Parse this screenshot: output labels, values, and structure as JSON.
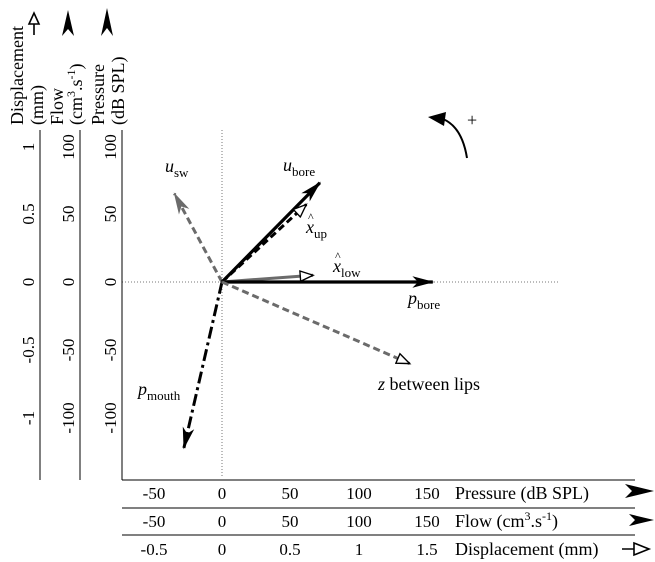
{
  "chart_data": {
    "type": "vector-diagram",
    "axes": {
      "horizontal": [
        {
          "name": "Pressure",
          "label": "Pressure (dB SPL)",
          "ticks": [
            "-50",
            "0",
            "50",
            "100",
            "150"
          ],
          "range": [
            -75,
            250
          ]
        },
        {
          "name": "Flow",
          "label": "Flow (cm",
          "label_sup": "3",
          "label_tail": ".s",
          "label_sup2": "-1",
          "label_close": ")",
          "ticks": [
            "-50",
            "0",
            "50",
            "100",
            "150"
          ],
          "range": [
            -75,
            250
          ]
        },
        {
          "name": "Displacement",
          "label": "Displacement (mm)",
          "ticks": [
            "-0.5",
            "0",
            "0.5",
            "1",
            "1.5"
          ],
          "range": [
            -0.75,
            2.5
          ]
        }
      ],
      "vertical": [
        {
          "name": "Displacement",
          "label_line1": "Displacement",
          "label_line2": "(mm)",
          "ticks": [
            "1",
            "0.5",
            "0",
            "-0.5",
            "-1"
          ]
        },
        {
          "name": "Flow",
          "label_line1": "Flow",
          "label_line2": "(cm",
          "label_sup": "3",
          "label_tail": ".s",
          "label_sup2": "-1",
          "label_close": ")",
          "ticks": [
            "100",
            "50",
            "0",
            "-50",
            "-100"
          ]
        },
        {
          "name": "Pressure",
          "label_line1": "Pressure",
          "label_line2": "(dB SPL)",
          "ticks": [
            "100",
            "50",
            "0",
            "-50",
            "-100"
          ]
        }
      ]
    },
    "rotation_label": "+",
    "vectors": [
      {
        "name": "p_mouth",
        "label_main": "p",
        "label_sub": "mouth",
        "x": -28,
        "y": -122,
        "style": "dash-dot",
        "color": "#000000",
        "arrow": "filled",
        "scale": "Pressure"
      },
      {
        "name": "u_sw",
        "label_main": "u",
        "label_sub": "sw",
        "x": -35,
        "y": 65,
        "style": "dashed",
        "color": "#6b6b6b",
        "arrow": "filled",
        "scale": "Flow"
      },
      {
        "name": "u_bore",
        "label_main": "u",
        "label_sub": "bore",
        "x": 72,
        "y": 73,
        "style": "solid",
        "color": "#000000",
        "arrow": "filled",
        "scale": "Flow"
      },
      {
        "name": "x_up",
        "label_main": "x",
        "label_hat": "^",
        "label_sub": "up",
        "x": 0.62,
        "y": 0.57,
        "style": "dashed",
        "color": "#000000",
        "arrow": "open",
        "scale": "Displacement"
      },
      {
        "name": "x_low",
        "label_main": "x",
        "label_hat": "^",
        "label_sub": "low",
        "x": 0.67,
        "y": 0.05,
        "style": "solid",
        "color": "#6b6b6b",
        "arrow": "open",
        "scale": "Displacement"
      },
      {
        "name": "p_bore",
        "label_main": "p",
        "label_sub": "bore",
        "x": 155,
        "y": 0,
        "style": "solid",
        "color": "#000000",
        "arrow": "filled",
        "scale": "Pressure"
      },
      {
        "name": "z_between_lips",
        "label_main": "z",
        "label_tail": " between lips",
        "x": 1.38,
        "y": -0.6,
        "style": "dashed",
        "color": "#6b6b6b",
        "arrow": "open",
        "scale": "Displacement"
      }
    ]
  }
}
